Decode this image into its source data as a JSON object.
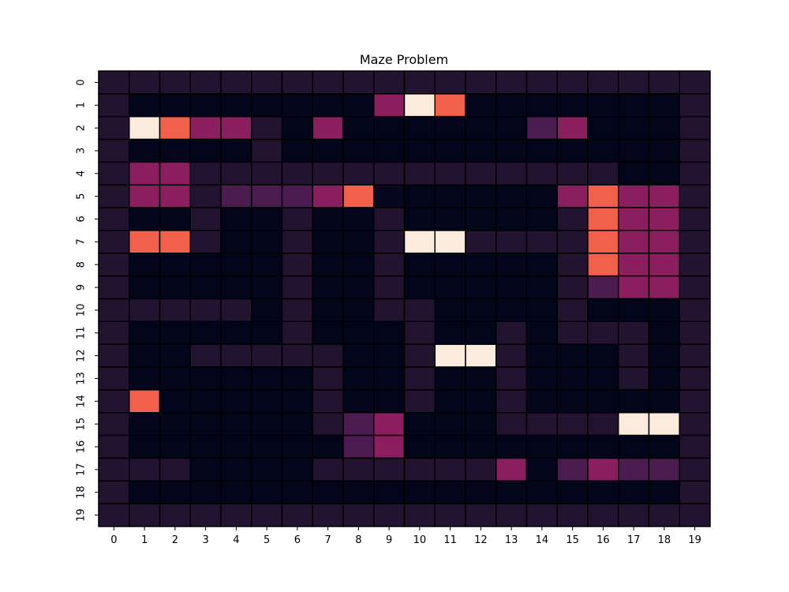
{
  "chart_data": {
    "type": "heatmap",
    "title": "Maze Problem",
    "xlabel": "",
    "ylabel": "",
    "x_ticks": [
      "0",
      "1",
      "2",
      "3",
      "4",
      "5",
      "6",
      "7",
      "8",
      "9",
      "10",
      "11",
      "12",
      "13",
      "14",
      "15",
      "16",
      "17",
      "18",
      "19"
    ],
    "y_ticks": [
      "0",
      "1",
      "2",
      "3",
      "4",
      "5",
      "6",
      "7",
      "8",
      "9",
      "10",
      "11",
      "12",
      "13",
      "14",
      "15",
      "16",
      "17",
      "18",
      "19"
    ],
    "color_levels": {
      "0": "#03051a",
      "1": "#07071f",
      "2": "#221331",
      "3": "#2b1535",
      "4": "#4a1c50",
      "5": "#8a1e5e",
      "6": "#f0604a",
      "7": "#faebdd"
    },
    "grid_lines": true,
    "colorbar": false,
    "values": [
      [
        2,
        2,
        2,
        2,
        2,
        2,
        2,
        2,
        2,
        2,
        2,
        2,
        2,
        2,
        2,
        2,
        2,
        2,
        2,
        2
      ],
      [
        2,
        0,
        0,
        0,
        0,
        0,
        0,
        0,
        0,
        5,
        7,
        6,
        0,
        0,
        0,
        0,
        0,
        0,
        0,
        2
      ],
      [
        2,
        7,
        6,
        5,
        5,
        2,
        0,
        5,
        0,
        0,
        0,
        0,
        0,
        0,
        4,
        5,
        0,
        0,
        0,
        2
      ],
      [
        2,
        0,
        0,
        0,
        0,
        2,
        0,
        0,
        0,
        0,
        0,
        0,
        0,
        0,
        0,
        0,
        0,
        0,
        0,
        2
      ],
      [
        2,
        5,
        5,
        2,
        2,
        2,
        2,
        2,
        2,
        2,
        2,
        2,
        2,
        2,
        2,
        2,
        2,
        0,
        0,
        2
      ],
      [
        2,
        5,
        5,
        2,
        4,
        4,
        4,
        5,
        6,
        1,
        0,
        0,
        0,
        0,
        0,
        5,
        6,
        5,
        5,
        2
      ],
      [
        2,
        0,
        0,
        2,
        0,
        0,
        2,
        0,
        0,
        2,
        0,
        0,
        0,
        0,
        0,
        2,
        6,
        5,
        5,
        2
      ],
      [
        2,
        6,
        6,
        2,
        0,
        0,
        2,
        0,
        0,
        2,
        7,
        7,
        2,
        2,
        2,
        2,
        6,
        5,
        5,
        2
      ],
      [
        2,
        0,
        0,
        0,
        0,
        0,
        2,
        0,
        0,
        2,
        0,
        0,
        0,
        0,
        0,
        2,
        6,
        5,
        5,
        2
      ],
      [
        2,
        0,
        0,
        0,
        0,
        0,
        2,
        0,
        0,
        2,
        0,
        0,
        0,
        0,
        0,
        2,
        4,
        5,
        5,
        2
      ],
      [
        2,
        2,
        2,
        2,
        2,
        0,
        2,
        0,
        0,
        2,
        2,
        0,
        0,
        0,
        0,
        2,
        0,
        0,
        0,
        2
      ],
      [
        2,
        0,
        0,
        0,
        0,
        0,
        2,
        0,
        0,
        0,
        2,
        0,
        0,
        2,
        0,
        2,
        2,
        2,
        0,
        2
      ],
      [
        2,
        0,
        0,
        2,
        2,
        2,
        2,
        2,
        0,
        0,
        2,
        7,
        7,
        2,
        0,
        0,
        0,
        2,
        0,
        2
      ],
      [
        2,
        0,
        0,
        0,
        0,
        0,
        0,
        2,
        0,
        0,
        2,
        0,
        0,
        2,
        0,
        0,
        0,
        2,
        0,
        2
      ],
      [
        2,
        6,
        0,
        0,
        0,
        0,
        0,
        2,
        0,
        0,
        2,
        0,
        0,
        2,
        0,
        0,
        0,
        0,
        0,
        2
      ],
      [
        2,
        0,
        0,
        0,
        0,
        0,
        0,
        2,
        4,
        5,
        0,
        0,
        0,
        2,
        2,
        2,
        2,
        7,
        7,
        2
      ],
      [
        2,
        0,
        0,
        0,
        0,
        0,
        0,
        0,
        4,
        5,
        0,
        0,
        0,
        0,
        0,
        0,
        0,
        0,
        0,
        2
      ],
      [
        2,
        2,
        2,
        0,
        0,
        0,
        0,
        2,
        2,
        2,
        2,
        2,
        2,
        5,
        0,
        4,
        5,
        4,
        4,
        2
      ],
      [
        2,
        0,
        0,
        0,
        0,
        0,
        0,
        0,
        0,
        0,
        0,
        0,
        0,
        0,
        0,
        0,
        0,
        0,
        0,
        2
      ],
      [
        2,
        2,
        2,
        2,
        2,
        2,
        2,
        2,
        2,
        2,
        2,
        2,
        2,
        2,
        2,
        2,
        2,
        2,
        2,
        2
      ]
    ]
  }
}
